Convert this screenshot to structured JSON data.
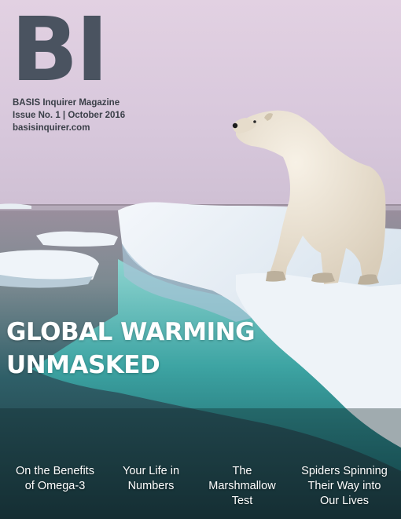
{
  "logo": {
    "text": "BI"
  },
  "masthead": {
    "name": "BASIS Inquirer Magazine",
    "issue": "Issue No. 1 | October 2016",
    "website": "basisinquirer.com"
  },
  "headline": {
    "line1": "GLOBAL WARMING",
    "line2": "UNMASKED"
  },
  "features": [
    {
      "title": "On the Benefits\nof Omega-3"
    },
    {
      "title": "Your Life in\nNumbers"
    },
    {
      "title": "The\nMarshmallow\nTest"
    },
    {
      "title": "Spiders Spinning\nTheir Way into\nOur Lives"
    }
  ],
  "colors": {
    "logo": "#4a5360",
    "sky_top": "#d9c9db",
    "water": "#4fb7b4",
    "headline": "#ffffff"
  }
}
